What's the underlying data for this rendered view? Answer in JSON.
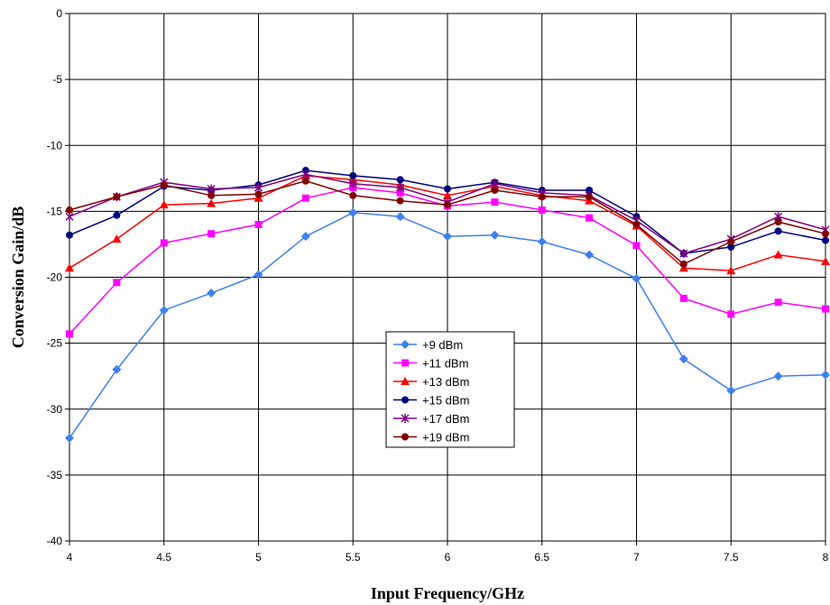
{
  "chart_data": {
    "type": "line",
    "xlabel": "Input Frequency/GHz",
    "ylabel": "Conversion Gain/dB",
    "xlim": [
      4,
      8
    ],
    "ylim": [
      -40,
      0
    ],
    "xticks": [
      "4",
      "4.5",
      "5",
      "5.5",
      "6",
      "6.5",
      "7",
      "7.5",
      "8"
    ],
    "yticks": [
      "0",
      "-5",
      "-10",
      "-15",
      "-20",
      "-25",
      "-30",
      "-35",
      "-40"
    ],
    "grid": true,
    "legend_position": "center-right",
    "x": [
      4,
      4.25,
      4.5,
      4.75,
      5,
      5.25,
      5.5,
      5.75,
      6,
      6.25,
      6.5,
      6.75,
      7,
      7.25,
      7.5,
      7.75,
      8
    ],
    "series": [
      {
        "name": "+9 dBm",
        "color": "#3F7FEF",
        "marker": "diamond",
        "values": [
          -32.2,
          -27.0,
          -22.5,
          -21.2,
          -19.8,
          -16.9,
          -15.1,
          -15.4,
          -16.9,
          -16.8,
          -17.3,
          -18.3,
          -20.1,
          -26.2,
          -28.6,
          -27.5,
          -27.4
        ]
      },
      {
        "name": "+11 dBm",
        "color": "#FF00FF",
        "marker": "square",
        "values": [
          -24.3,
          -20.4,
          -17.4,
          -16.7,
          -16.0,
          -14.0,
          -13.2,
          -13.6,
          -14.6,
          -14.3,
          -14.9,
          -15.5,
          -17.6,
          -21.6,
          -22.8,
          -21.9,
          -22.4
        ]
      },
      {
        "name": "+13 dBm",
        "color": "#FF0000",
        "marker": "triangle",
        "values": [
          -19.3,
          -17.1,
          -14.5,
          -14.4,
          -14.0,
          -12.3,
          -12.6,
          -13.0,
          -13.8,
          -13.1,
          -13.8,
          -14.2,
          -16.1,
          -19.3,
          -19.5,
          -18.3,
          -18.8
        ]
      },
      {
        "name": "+15 dBm",
        "color": "#000080",
        "marker": "circle",
        "values": [
          -16.8,
          -15.3,
          -13.1,
          -13.4,
          -13.0,
          -11.9,
          -12.3,
          -12.6,
          -13.3,
          -12.8,
          -13.4,
          -13.4,
          -15.4,
          -18.2,
          -17.7,
          -16.5,
          -17.2
        ]
      },
      {
        "name": "+17 dBm",
        "color": "#800080",
        "marker": "star",
        "values": [
          -15.4,
          -13.9,
          -12.8,
          -13.3,
          -13.2,
          -12.2,
          -12.9,
          -13.2,
          -14.3,
          -12.9,
          -13.6,
          -13.8,
          -15.7,
          -18.2,
          -17.1,
          -15.4,
          -16.4
        ]
      },
      {
        "name": "+19 dBm",
        "color": "#800000",
        "marker": "circle",
        "values": [
          -14.9,
          -13.9,
          -13.0,
          -13.8,
          -13.7,
          -12.7,
          -13.8,
          -14.2,
          -14.5,
          -13.4,
          -13.9,
          -13.9,
          -16.0,
          -19.0,
          -17.3,
          -15.8,
          -16.7
        ]
      }
    ]
  }
}
